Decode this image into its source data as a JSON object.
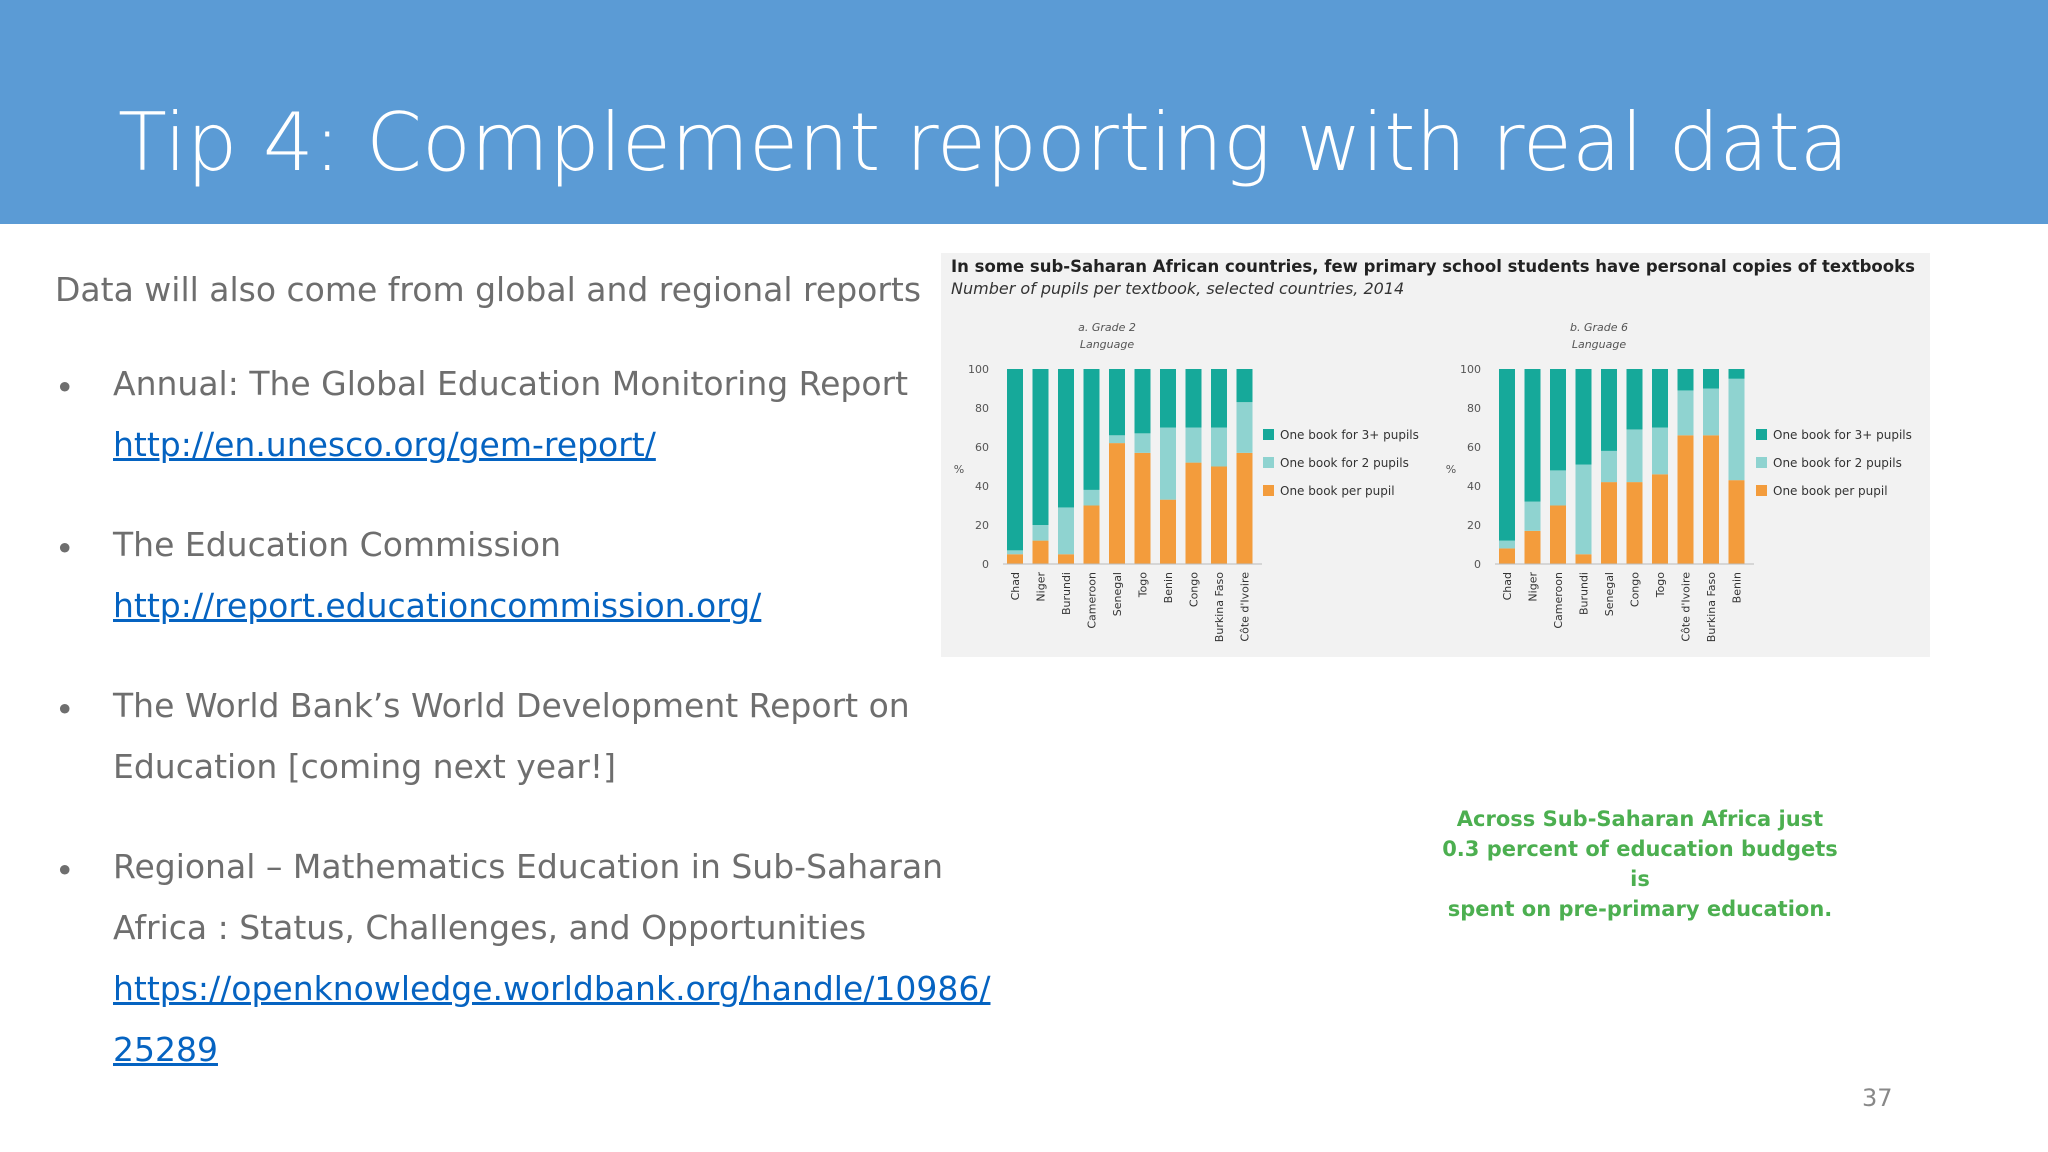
{
  "slide": {
    "title": "Tip 4: Complement reporting with real data",
    "intro": "Data will also come from global and regional reports",
    "bullets": [
      {
        "lines": [
          "Annual: The Global Education Monitoring Report"
        ],
        "link": "http://en.unesco.org/gem-report/"
      },
      {
        "lines": [
          "The Education Commission"
        ],
        "link": "http://report.educationcommission.org/"
      },
      {
        "lines": [
          "The World Bank’s World Development Report on",
          "Education [coming next year!]"
        ]
      },
      {
        "lines": [
          "Regional – Mathematics Education in Sub-Saharan",
          "Africa : Status, Challenges, and Opportunities"
        ],
        "link_lines": [
          "https://openknowledge.worldbank.org/handle/10986/",
          "25289"
        ]
      }
    ],
    "callout_lines": [
      "Across Sub-Saharan Africa just",
      "0.3 percent of education budgets is",
      "spent on pre-primary education."
    ],
    "page_number": "37",
    "colors": {
      "header": "#5b9bd5",
      "link": "#0563c1",
      "callout": "#4caf50"
    }
  },
  "chart_data": {
    "title": "In some sub-Saharan African countries, few primary school students have personal copies of textbooks",
    "subtitle": "Number of pupils per textbook, selected countries, 2014",
    "panels": [
      {
        "type": "bar",
        "stacked": true,
        "title": "a. Grade 2",
        "subtitle": "Language",
        "ylabel": "%",
        "ylim": [
          0,
          100
        ],
        "yticks": [
          0,
          20,
          40,
          60,
          80,
          100
        ],
        "categories": [
          "Chad",
          "Niger",
          "Burundi",
          "Cameroon",
          "Senegal",
          "Togo",
          "Benin",
          "Congo",
          "Burkina Faso",
          "Côte d'Ivoire"
        ],
        "series": [
          {
            "name": "One book per pupil",
            "color": "#f39c3c",
            "values": [
              5,
              12,
              5,
              30,
              62,
              57,
              33,
              52,
              50,
              57
            ]
          },
          {
            "name": "One book for 2 pupils",
            "color": "#8fd3d0",
            "values": [
              2,
              8,
              24,
              8,
              4,
              10,
              37,
              18,
              20,
              26
            ]
          },
          {
            "name": "One book for 3+ pupils",
            "color": "#16a99a",
            "values": [
              93,
              80,
              71,
              62,
              34,
              33,
              30,
              30,
              30,
              17
            ]
          }
        ],
        "legend": [
          "One book for 3+ pupils",
          "One book for 2 pupils",
          "One book per pupil"
        ]
      },
      {
        "type": "bar",
        "stacked": true,
        "title": "b. Grade 6",
        "subtitle": "Language",
        "ylabel": "%",
        "ylim": [
          0,
          100
        ],
        "yticks": [
          0,
          20,
          40,
          60,
          80,
          100
        ],
        "categories": [
          "Chad",
          "Niger",
          "Cameroon",
          "Burundi",
          "Senegal",
          "Congo",
          "Togo",
          "Côte d'Ivoire",
          "Burkina Faso",
          "Benin"
        ],
        "series": [
          {
            "name": "One book per pupil",
            "color": "#f39c3c",
            "values": [
              8,
              17,
              30,
              5,
              42,
              42,
              46,
              66,
              66,
              43
            ]
          },
          {
            "name": "One book for 2 pupils",
            "color": "#8fd3d0",
            "values": [
              4,
              15,
              18,
              46,
              16,
              27,
              24,
              23,
              24,
              52
            ]
          },
          {
            "name": "One book for 3+ pupils",
            "color": "#16a99a",
            "values": [
              88,
              68,
              52,
              49,
              42,
              31,
              30,
              11,
              10,
              5
            ]
          }
        ],
        "legend": [
          "One book for 3+ pupils",
          "One book for 2 pupils",
          "One book per pupil"
        ]
      }
    ]
  }
}
